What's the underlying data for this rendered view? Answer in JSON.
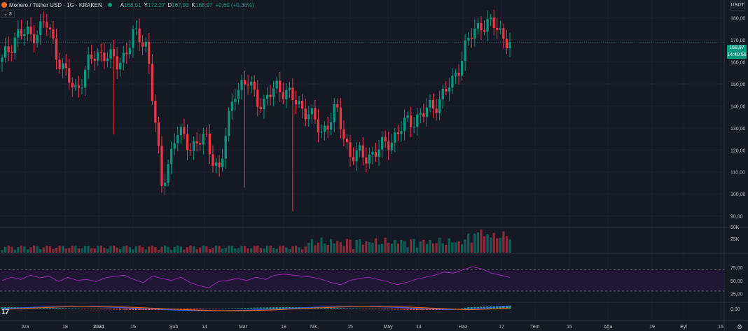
{
  "header": {
    "symbol_title": "Monero / Tether USD · 1G · KRAKEN",
    "open_label": "A",
    "open_value": "168,51",
    "high_label": "Y",
    "high_value": "172,27",
    "low_label": "D",
    "low_value": "167,93",
    "close_label": "K",
    "close_value": "168,97",
    "change_value": "+0,60 (+0,36%)",
    "indicators_collapse": "3"
  },
  "currency_button": "USDT",
  "last_price": {
    "price": "168,97",
    "countdown": "14:40:56"
  },
  "colors": {
    "background": "#151924",
    "up": "#089981",
    "down": "#f23645",
    "rsi": "#9c27b0",
    "rsi_band": "#1f1733",
    "macd": "#2962ff",
    "signal": "#ff6d00"
  },
  "price_axis_labels": [
    "180,00",
    "170,00",
    "160,00",
    "150,00",
    "140,00",
    "130,00",
    "120,00",
    "110,00",
    "100,00",
    "90,00"
  ],
  "volume_axis_labels": [
    "50K",
    "25K"
  ],
  "rsi_axis_labels": [
    "75,00",
    "50,00",
    "25,00"
  ],
  "macd_axis_labels": [
    "0,00"
  ],
  "time_axis_labels": [
    "Ara",
    "18",
    "2024",
    "15",
    "Şub",
    "14",
    "Mar",
    "18",
    "Nis",
    "15",
    "May",
    "14",
    "Haz",
    "17",
    "Tem",
    "15",
    "Ağu",
    "19",
    "Eyl",
    "16"
  ],
  "chart_data": {
    "type": "candlestick",
    "symbol": "XMR/USDT",
    "exchange": "KRAKEN",
    "interval": "1G",
    "ylim": [
      87,
      185
    ],
    "last_close": 168.97,
    "segments": [
      {
        "from": "Ara",
        "price": 160
      },
      {
        "from": "Ara",
        "price": 173
      },
      {
        "from": "18",
        "price": 172
      },
      {
        "from": "18",
        "price": 178
      },
      {
        "from": "2024",
        "price": 160
      },
      {
        "from": "2024",
        "price": 146
      },
      {
        "from": "15",
        "price": 160
      },
      {
        "from": "15",
        "price": 165
      },
      {
        "from": "15",
        "price": 158
      },
      {
        "from": "15",
        "price": 172
      },
      {
        "from": "Şub",
        "price": 168
      },
      {
        "from": "Şub",
        "price": 103
      },
      {
        "from": "14",
        "price": 128
      },
      {
        "from": "14",
        "price": 122
      },
      {
        "from": "14",
        "price": 125
      },
      {
        "from": "14",
        "price": 110
      },
      {
        "from": "Mar",
        "price": 148
      },
      {
        "from": "Mar",
        "price": 150
      },
      {
        "from": "Mar",
        "price": 140
      },
      {
        "from": "Mar",
        "price": 150
      },
      {
        "from": "18",
        "price": 143
      },
      {
        "from": "18",
        "price": 138
      },
      {
        "from": "Nis",
        "price": 128
      },
      {
        "from": "Nis",
        "price": 138
      },
      {
        "from": "Nis",
        "price": 118
      },
      {
        "from": "15",
        "price": 117
      },
      {
        "from": "15",
        "price": 120
      },
      {
        "from": "May",
        "price": 126
      },
      {
        "from": "May",
        "price": 133
      },
      {
        "from": "14",
        "price": 136
      },
      {
        "from": "14",
        "price": 142
      },
      {
        "from": "Haz",
        "price": 150
      },
      {
        "from": "Haz",
        "price": 168
      },
      {
        "from": "Haz",
        "price": 178
      },
      {
        "from": "17",
        "price": 176
      },
      {
        "from": "17",
        "price": 169
      }
    ],
    "volume_max": 52,
    "rsi_levels": [
      70,
      30
    ],
    "rsi_range": [
      10,
      100
    ],
    "rsi_points": [
      50,
      56,
      52,
      60,
      55,
      58,
      48,
      56,
      50,
      52,
      48,
      55,
      58,
      60,
      52,
      46,
      58,
      54,
      50,
      56,
      46,
      40,
      36,
      48,
      50,
      54,
      50,
      56,
      52,
      60,
      62,
      60,
      58,
      56,
      52,
      46,
      42,
      50,
      54,
      56,
      52,
      48,
      42,
      46,
      52,
      56,
      60,
      66,
      64,
      70,
      76,
      72,
      64,
      60,
      56
    ]
  }
}
